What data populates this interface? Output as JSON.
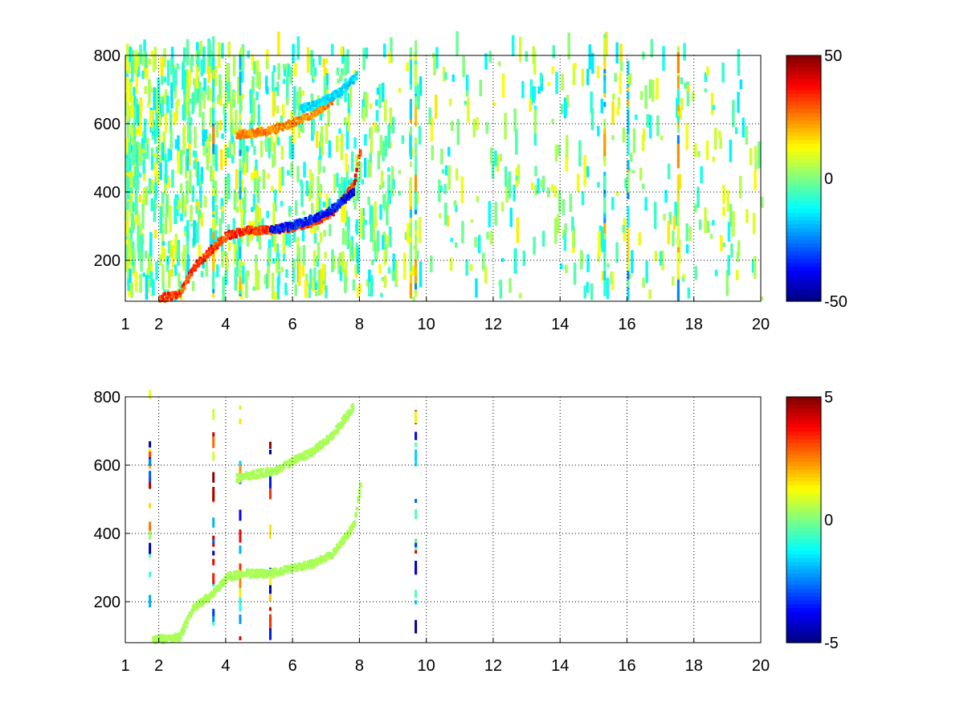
{
  "chart_data": [
    {
      "type": "heatmap",
      "panel": "top",
      "xlim": [
        1,
        20
      ],
      "ylim": [
        80,
        800
      ],
      "xticks": [
        "1",
        "2",
        "4",
        "6",
        "8",
        "10",
        "12",
        "14",
        "16",
        "18",
        "20"
      ],
      "yticks": [
        "200",
        "400",
        "600",
        "800"
      ],
      "grid": true,
      "colormap": "jet",
      "clim": [
        -50,
        50
      ],
      "colorbar_ticks": [
        "50",
        "0",
        "-50"
      ],
      "tracks": [
        {
          "x": [
            2.0,
            2.6,
            3.0,
            3.5,
            4.0,
            4.6,
            5.3,
            6.0,
            6.6,
            7.2,
            7.8,
            8.0
          ],
          "y": [
            85,
            100,
            175,
            225,
            270,
            285,
            285,
            295,
            310,
            340,
            420,
            520
          ],
          "value": 40
        },
        {
          "x": [
            5.3,
            6.0,
            6.6,
            7.2,
            7.8
          ],
          "y": [
            285,
            300,
            320,
            350,
            400
          ],
          "value": -45
        },
        {
          "x": [
            4.3,
            4.8,
            5.4,
            6.0,
            6.6,
            7.2
          ],
          "y": [
            565,
            570,
            580,
            600,
            630,
            670
          ],
          "value": 30
        },
        {
          "x": [
            6.2,
            6.8,
            7.4,
            7.9
          ],
          "y": [
            640,
            660,
            690,
            740
          ],
          "value": -20
        }
      ],
      "vertical_streaks_x": [
        3.6,
        4.4,
        9.5,
        9.65,
        15.3,
        16.0,
        17.5
      ]
    },
    {
      "type": "heatmap",
      "panel": "bottom",
      "xlim": [
        1,
        20
      ],
      "ylim": [
        80,
        800
      ],
      "xticks": [
        "1",
        "2",
        "4",
        "6",
        "8",
        "10",
        "12",
        "14",
        "16",
        "18",
        "20"
      ],
      "yticks": [
        "200",
        "400",
        "600",
        "800"
      ],
      "grid": true,
      "colormap": "jet",
      "clim": [
        -5,
        5
      ],
      "colorbar_ticks": [
        "5",
        "0",
        "-5"
      ],
      "tracks": [
        {
          "x": [
            1.8,
            2.6,
            3.0,
            3.6,
            4.0,
            4.6,
            5.3,
            6.0,
            6.6,
            7.2,
            7.8,
            8.0
          ],
          "y": [
            85,
            95,
            180,
            220,
            270,
            280,
            280,
            295,
            310,
            340,
            420,
            540
          ],
          "value": 0.5
        },
        {
          "x": [
            4.3,
            4.8,
            5.4,
            6.0,
            6.6,
            7.2,
            7.8
          ],
          "y": [
            560,
            570,
            580,
            610,
            640,
            690,
            770
          ],
          "value": 0.5
        }
      ],
      "vertical_streaks_x": [
        1.7,
        3.6,
        4.4,
        5.3,
        9.65
      ]
    }
  ]
}
